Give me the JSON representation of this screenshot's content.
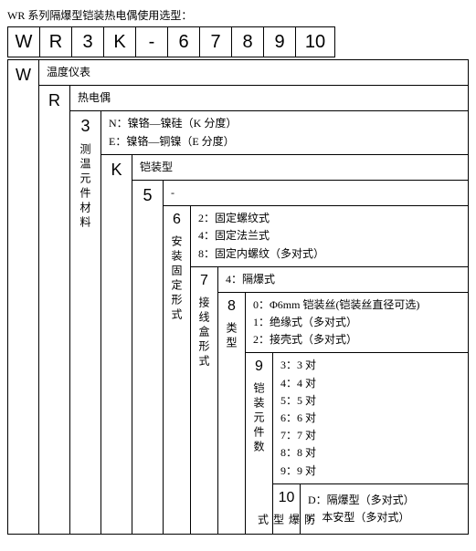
{
  "title": "WR 系列隔爆型铠装热电偶使用选型：",
  "code": [
    "W",
    "R",
    "3",
    "K",
    "-",
    "6",
    "7",
    "8",
    "9",
    "10"
  ],
  "levels": {
    "W": {
      "head": "W",
      "desc": "温度仪表"
    },
    "R": {
      "head": "R",
      "desc": "热电偶"
    },
    "L3": {
      "head": "3",
      "label": "测温元件材料",
      "lines": [
        "N：镍铬—镍硅（K 分度）",
        "E：镍铬—铜镍（E 分度）"
      ]
    },
    "K": {
      "head": "K",
      "desc": "铠装型"
    },
    "L5": {
      "head": "5",
      "desc": "-"
    },
    "L6": {
      "head": "6",
      "label": "安装固定形式",
      "lines": [
        "2：固定螺纹式",
        "4：固定法兰式",
        "8：固定内螺纹（多对式）"
      ]
    },
    "L7": {
      "head": "7",
      "label": "接线盒形式",
      "lines": [
        "4：隔爆式"
      ]
    },
    "L8": {
      "head": "8",
      "label": "类型",
      "lines": [
        "0：Φ6mm 铠装丝(铠装丝直径可选)",
        "1：绝缘式（多对式）",
        "2：接壳式（多对式）"
      ]
    },
    "L9": {
      "head": "9",
      "label": "铠装元件数",
      "lines": [
        "3：3 对",
        "4：4 对",
        "5：5 对",
        "6：6 对",
        "7：7 对",
        "8：8 对",
        "9：9 对"
      ]
    },
    "L10": {
      "head": "10",
      "label": "防爆型式",
      "lines": [
        "D：隔爆型（多对式）",
        "i：本安型（多对式）"
      ]
    }
  },
  "colors": {
    "border": "#000000",
    "bg": "#ffffff",
    "text": "#000000"
  }
}
